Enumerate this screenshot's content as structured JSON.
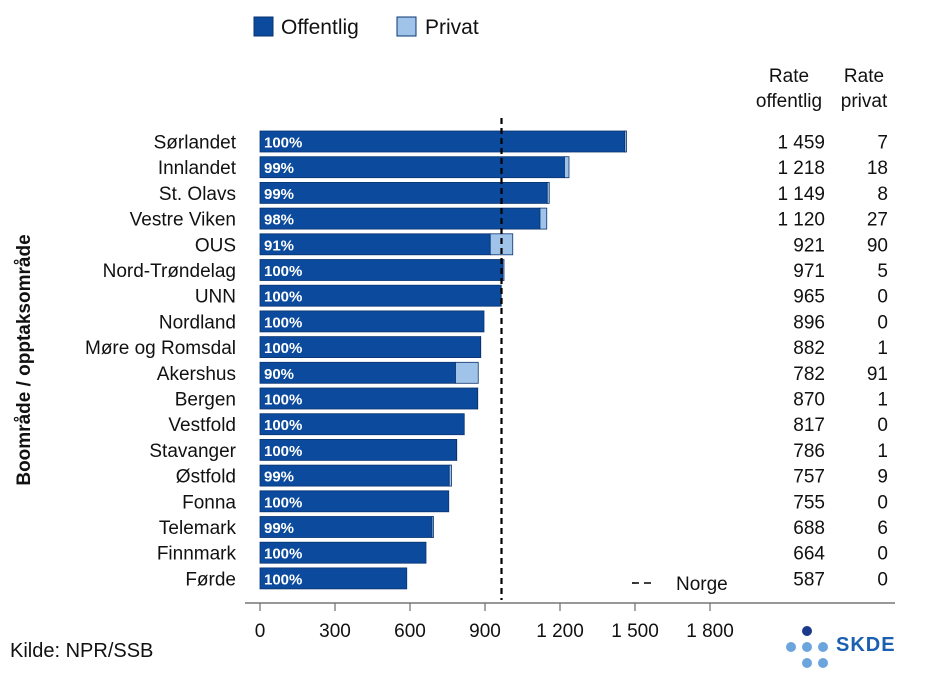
{
  "chart_data": {
    "type": "bar",
    "orientation": "horizontal",
    "stacked": true,
    "ylabel": "Boområde / opptaksområde",
    "categories": [
      "Sørlandet",
      "Innlandet",
      "St. Olavs",
      "Vestre Viken",
      "OUS",
      "Nord-Trøndelag",
      "UNN",
      "Nordland",
      "Møre og Romsdal",
      "Akershus",
      "Bergen",
      "Vestfold",
      "Stavanger",
      "Østfold",
      "Fonna",
      "Telemark",
      "Finnmark",
      "Førde"
    ],
    "series": [
      {
        "name": "Offentlig",
        "color": "#0b4a9c",
        "values": [
          1459,
          1218,
          1149,
          1120,
          921,
          971,
          965,
          896,
          882,
          782,
          870,
          817,
          786,
          757,
          755,
          688,
          664,
          587
        ]
      },
      {
        "name": "Privat",
        "color": "#9fc3e9",
        "values": [
          7,
          18,
          8,
          27,
          90,
          5,
          0,
          0,
          1,
          91,
          1,
          0,
          1,
          9,
          0,
          6,
          0,
          0
        ]
      }
    ],
    "bar_labels": [
      "100%",
      "99%",
      "99%",
      "98%",
      "91%",
      "100%",
      "100%",
      "100%",
      "100%",
      "90%",
      "100%",
      "100%",
      "100%",
      "99%",
      "100%",
      "99%",
      "100%",
      "100%"
    ],
    "xlim": [
      0,
      1950
    ],
    "xticks": [
      0,
      300,
      600,
      900,
      1200,
      1500,
      1800
    ],
    "xtick_labels": [
      "0",
      "300",
      "600",
      "900",
      "1 200",
      "1 500",
      "1 800"
    ],
    "reference_line": {
      "label": "Norge",
      "value": 966,
      "style": "dashed"
    },
    "legend": {
      "position": "top-left",
      "entries": [
        "Offentlig",
        "Privat"
      ]
    },
    "table_columns": {
      "col1_header": [
        "Rate",
        "offentlig"
      ],
      "col2_header": [
        "Rate",
        "privat"
      ],
      "col1_values": [
        "1 459",
        "1 218",
        "1 149",
        "1 120",
        "921",
        "971",
        "965",
        "896",
        "882",
        "782",
        "870",
        "817",
        "786",
        "757",
        "755",
        "688",
        "664",
        "587"
      ],
      "col2_values": [
        "7",
        "18",
        "8",
        "27",
        "90",
        "5",
        "0",
        "0",
        "1",
        "91",
        "1",
        "0",
        "1",
        "9",
        "0",
        "6",
        "0",
        "0"
      ]
    },
    "grid": false
  },
  "source": "Kilde: NPR/SSB",
  "logo_text": "SKDE"
}
